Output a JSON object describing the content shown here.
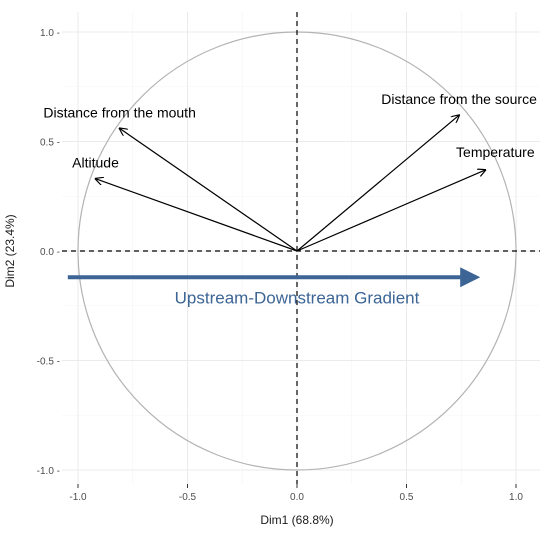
{
  "chart_data": {
    "type": "scatter",
    "subtype": "pca-correlation-circle",
    "xlabel": "Dim1 (68.8%)",
    "ylabel": "Dim2 (23.4%)",
    "xlim": [
      -1.0,
      1.0
    ],
    "ylim": [
      -1.0,
      1.0
    ],
    "x_ticks": [
      -1.0,
      -0.5,
      0.0,
      0.5,
      1.0
    ],
    "y_ticks": [
      -1.0,
      -0.5,
      0.0,
      0.5,
      1.0
    ],
    "x_tick_labels": [
      "-1.0",
      "-0.5",
      "0.0",
      "0.5",
      "1.0"
    ],
    "y_tick_labels": [
      "-1.0 -",
      "-0.5 -",
      "0.0 -",
      "0.5 -",
      "1.0 -"
    ],
    "grid": true,
    "unit_circle": true,
    "reference_lines": {
      "x": 0,
      "y": 0,
      "style": "dashed"
    },
    "vectors": [
      {
        "label": "Distance from the mouth",
        "x": -0.81,
        "y": 0.56
      },
      {
        "label": "Altitude",
        "x": -0.92,
        "y": 0.33
      },
      {
        "label": "Distance from the source",
        "x": 0.74,
        "y": 0.62
      },
      {
        "label": "Temperature",
        "x": 0.86,
        "y": 0.37
      }
    ],
    "annotation": {
      "text": "Upstream-Downstream Gradient",
      "arrow_from": {
        "x": -0.8,
        "y": -0.12
      },
      "arrow_to": {
        "x": 0.8,
        "y": -0.12
      },
      "color": "#3c6595"
    },
    "colors": {
      "circle": "#b3b3b3",
      "vectors": "#000000",
      "tick_text": "#4d4d4d"
    }
  }
}
